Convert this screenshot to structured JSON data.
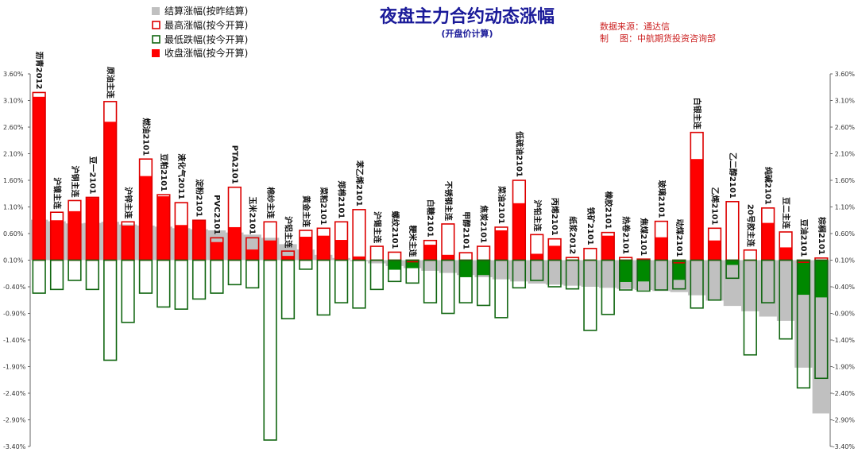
{
  "chart_data": {
    "type": "bar",
    "title": "夜盘主力合约动态涨幅",
    "subtitle": "(开盘价计算)",
    "source_note": "数据来源：通达信",
    "author_note": "制    图：中航期货投资咨询部",
    "ylim": [
      -3.4,
      3.6
    ],
    "yticks": [
      "3.60%",
      "3.10%",
      "2.60%",
      "2.10%",
      "1.60%",
      "1.10%",
      "0.60%",
      "0.10%",
      "-0.40%",
      "-0.90%",
      "-1.40%",
      "-1.90%",
      "-2.40%",
      "-2.90%",
      "-3.40%"
    ],
    "ytick_values": [
      3.6,
      3.1,
      2.6,
      2.1,
      1.6,
      1.1,
      0.6,
      0.1,
      -0.4,
      -0.9,
      -1.4,
      -1.9,
      -2.4,
      -2.9,
      -3.4
    ],
    "legend_position": "top-left",
    "colors": {
      "settle": "#c0c0c0",
      "high": "#dd0000",
      "low": "#116611",
      "close_up": "#ff0000",
      "close_down": "#008800"
    },
    "categories": [
      "沥青2012",
      "沪镍主连",
      "沪铜主连",
      "豆一2101",
      "原油主连",
      "沪锌主连",
      "燃油2101",
      "豆粕2101",
      "液化气2011",
      "淀粉2101",
      "PVC2101",
      "PTA2101",
      "玉米2101",
      "棉纱主连",
      "沪铝主连",
      "黄金主连",
      "菜粕2101",
      "郑棉2101",
      "苯乙烯2101",
      "沪锡主连",
      "螺纹2101",
      "粳米主连",
      "白糖2101",
      "不锈钢主连",
      "甲醇2101",
      "焦炭2101",
      "菜油2101",
      "低硫油2101",
      "沪铅主连",
      "丙烯2101",
      "纸浆2012",
      "铁矿2101",
      "橡胶2101",
      "热卷2101",
      "焦煤2101",
      "玻璃2101",
      "动煤2101",
      "白银主连",
      "乙烯2101",
      "乙二醇2101",
      "20号胶主连",
      "纯碱2101",
      "豆二主连",
      "豆油2101",
      "棕榈2101"
    ],
    "series": [
      {
        "name": "结算涨幅(按昨结算)",
        "style": "gray-fill",
        "values": [
          0.86,
          0.83,
          0.79,
          0.8,
          0.82,
          0.77,
          0.75,
          0.73,
          0.7,
          0.68,
          0.66,
          0.62,
          0.58,
          0.52,
          0.4,
          0.3,
          0.2,
          0.14,
          0.08,
          0.04,
          -0.01,
          -0.05,
          -0.1,
          -0.14,
          -0.18,
          -0.22,
          -0.26,
          -0.3,
          -0.34,
          -0.36,
          -0.38,
          -0.4,
          -0.42,
          -0.44,
          -0.46,
          -0.48,
          -0.5,
          -0.56,
          -0.66,
          -0.76,
          -0.86,
          -0.96,
          -1.04,
          -1.92,
          -2.78
        ]
      },
      {
        "name": "最高涨幅(按今开算)",
        "style": "red-outline",
        "values": [
          3.25,
          1.0,
          1.22,
          1.28,
          3.08,
          0.82,
          2.0,
          1.33,
          1.18,
          0.85,
          0.52,
          1.47,
          0.52,
          0.82,
          0.27,
          0.66,
          0.7,
          0.82,
          1.05,
          0.36,
          0.25,
          0.07,
          0.47,
          0.78,
          0.24,
          0.36,
          0.72,
          1.6,
          0.58,
          0.5,
          0.15,
          0.32,
          0.62,
          0.15,
          0.12,
          0.83,
          0.05,
          2.5,
          0.7,
          1.2,
          0.29,
          1.08,
          0.63,
          0.06,
          0.14
        ]
      },
      {
        "name": "最低跌幅(按今开算)",
        "style": "green-outline",
        "values": [
          -0.52,
          -0.45,
          -0.28,
          -0.45,
          -1.78,
          -1.07,
          -0.52,
          -0.78,
          -0.82,
          -0.63,
          -0.52,
          -0.36,
          -0.42,
          -3.28,
          -1.0,
          -0.07,
          -0.93,
          -0.7,
          -0.8,
          -0.45,
          -0.3,
          -0.33,
          -0.7,
          -0.9,
          -0.7,
          -0.75,
          -0.98,
          -0.42,
          -0.28,
          -0.4,
          -0.44,
          -1.22,
          -0.92,
          -0.46,
          -0.48,
          -0.46,
          -0.44,
          -0.8,
          -0.65,
          -0.24,
          -1.68,
          -0.7,
          -1.38,
          -2.3,
          -2.12
        ]
      },
      {
        "name": "收盘涨幅(按今开算)",
        "style": "solid",
        "values": [
          3.17,
          0.85,
          1.02,
          1.27,
          2.7,
          0.75,
          1.68,
          1.3,
          0.76,
          0.84,
          0.44,
          0.72,
          0.3,
          0.47,
          0.18,
          0.54,
          0.56,
          0.48,
          0.17,
          0.09,
          -0.08,
          -0.05,
          0.39,
          0.2,
          -0.22,
          -0.18,
          0.66,
          1.17,
          0.22,
          0.37,
          0.09,
          0.11,
          0.56,
          -0.31,
          -0.3,
          0.53,
          -0.27,
          2.0,
          0.47,
          0.01,
          0.1,
          0.8,
          0.34,
          -0.55,
          -0.6
        ]
      }
    ]
  }
}
